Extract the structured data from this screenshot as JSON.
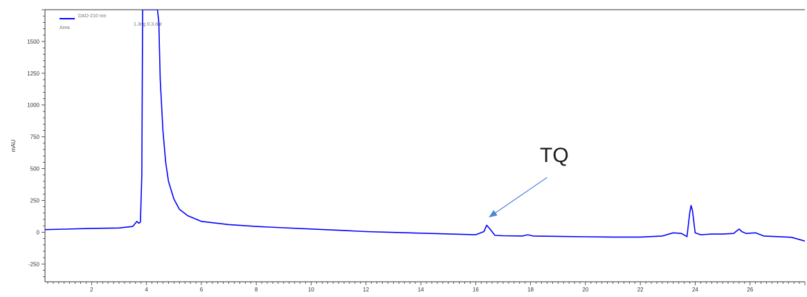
{
  "chart_data": {
    "type": "line",
    "ylabel": "mAU",
    "xlabel": "",
    "xlim": [
      0.3,
      28
    ],
    "ylim": [
      -390,
      1750
    ],
    "x_ticks": [
      2,
      4,
      6,
      8,
      10,
      12,
      14,
      16,
      18,
      20,
      22,
      24,
      26
    ],
    "x_tick_labels": [
      "2",
      "4",
      "6",
      "8",
      "10",
      "12",
      "14",
      "16",
      "18",
      "20",
      "22",
      "24",
      "26"
    ],
    "y_ticks": [
      -250,
      0,
      250,
      500,
      750,
      1000,
      1250,
      1500
    ],
    "y_tick_labels": [
      "-250",
      "0",
      "250",
      "500",
      "750",
      "1000",
      "1250",
      "1500"
    ],
    "grid": false,
    "legend": {
      "placement": "top-left",
      "entries": [
        "DAD-210 nm",
        "Area"
      ],
      "file_label": "1.3ng 0.3.dat"
    },
    "annotation": {
      "text": "TQ",
      "arrow_to": {
        "x": 16.5,
        "y": 120
      },
      "arrow_from": {
        "x": 18.6,
        "y": 430
      }
    },
    "series": [
      {
        "name": "DAD-210 nm",
        "color": "#0000ff",
        "x": [
          0.3,
          1,
          2,
          3,
          3.5,
          3.65,
          3.72,
          3.78,
          3.83,
          3.86,
          3.88,
          3.92,
          4.0,
          4.1,
          4.2,
          4.3,
          4.35,
          4.4,
          4.45,
          4.5,
          4.6,
          4.7,
          4.8,
          5,
          5.2,
          5.5,
          6,
          7,
          8,
          9,
          10,
          11,
          12,
          13,
          14,
          15,
          16,
          16.3,
          16.4,
          16.5,
          16.7,
          17,
          17.7,
          17.9,
          18.1,
          19,
          20,
          21,
          22,
          22.8,
          23.2,
          23.5,
          23.7,
          23.8,
          23.85,
          23.9,
          24.0,
          24.2,
          24.6,
          25,
          25.4,
          25.6,
          25.7,
          25.85,
          26.2,
          26.5,
          27,
          27.5,
          28
        ],
        "y": [
          20,
          24,
          30,
          33,
          45,
          85,
          70,
          80,
          450,
          1750,
          1750,
          1750,
          1750,
          1750,
          1750,
          1750,
          1750,
          1750,
          1650,
          1200,
          800,
          550,
          400,
          260,
          180,
          130,
          85,
          60,
          45,
          35,
          25,
          15,
          5,
          -2,
          -8,
          -14,
          -20,
          5,
          55,
          30,
          -25,
          -28,
          -30,
          -20,
          -30,
          -33,
          -36,
          -38,
          -38,
          -30,
          -5,
          -10,
          -35,
          150,
          210,
          170,
          -5,
          -20,
          -15,
          -15,
          -10,
          25,
          5,
          -10,
          -5,
          -30,
          -35,
          -40,
          -70
        ]
      }
    ]
  }
}
